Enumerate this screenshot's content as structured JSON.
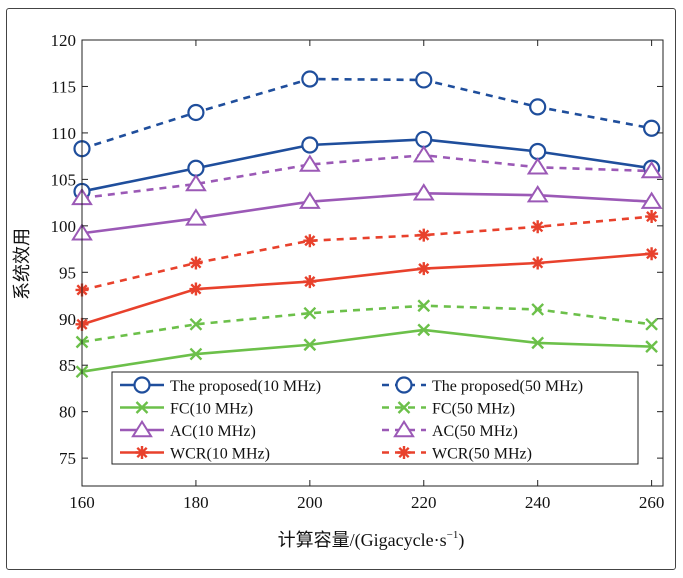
{
  "chart_data": {
    "type": "line",
    "title": "",
    "xlabel": "计算容量/(Gigacycle·s",
    "xlabel_sup": "−1",
    "xlabel_close": ")",
    "ylabel": "系统效用",
    "x": [
      160,
      180,
      200,
      220,
      240,
      260
    ],
    "xlim": [
      160,
      262
    ],
    "ylim": [
      72,
      120
    ],
    "yticks": [
      75,
      80,
      85,
      90,
      95,
      100,
      105,
      110,
      115,
      120
    ],
    "grid": false,
    "legend_position": "lower-center",
    "series": [
      {
        "name": "The proposed(10 MHz)",
        "color": "#1f4e9c",
        "dash": "solid",
        "marker": "circle",
        "values": [
          103.7,
          106.2,
          108.7,
          109.3,
          108.0,
          106.2
        ]
      },
      {
        "name": "The proposed(50 MHz)",
        "color": "#1f4e9c",
        "dash": "dashed",
        "marker": "circle",
        "values": [
          108.3,
          112.2,
          115.8,
          115.7,
          112.8,
          110.5
        ]
      },
      {
        "name": "FC(10 MHz)",
        "color": "#6cc04a",
        "dash": "solid",
        "marker": "x",
        "values": [
          84.3,
          86.2,
          87.2,
          88.8,
          87.4,
          87.0
        ]
      },
      {
        "name": "FC(50 MHz)",
        "color": "#6cc04a",
        "dash": "dashed",
        "marker": "x",
        "values": [
          87.5,
          89.4,
          90.6,
          91.4,
          91.0,
          89.4
        ]
      },
      {
        "name": "AC(10 MHz)",
        "color": "#9b59b6",
        "dash": "solid",
        "marker": "triangle",
        "values": [
          99.2,
          100.8,
          102.6,
          103.5,
          103.3,
          102.6
        ]
      },
      {
        "name": "AC(50 MHz)",
        "color": "#9b59b6",
        "dash": "dashed",
        "marker": "triangle",
        "values": [
          103.0,
          104.5,
          106.6,
          107.6,
          106.3,
          105.9
        ]
      },
      {
        "name": "WCR(10 MHz)",
        "color": "#e8412c",
        "dash": "solid",
        "marker": "asterisk",
        "values": [
          89.4,
          93.2,
          94.0,
          95.4,
          96.0,
          97.0
        ]
      },
      {
        "name": "WCR(50 MHz)",
        "color": "#e8412c",
        "dash": "dashed",
        "marker": "asterisk",
        "values": [
          93.1,
          96.0,
          98.4,
          99.0,
          99.9,
          101.0
        ]
      }
    ]
  }
}
